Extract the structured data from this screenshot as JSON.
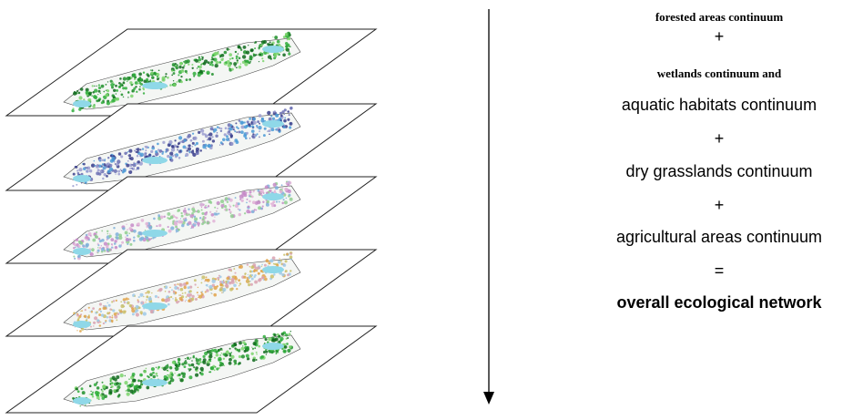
{
  "flow": {
    "line1": "forested areas continuum",
    "plus1": "+",
    "line2": "wetlands continuum and",
    "line3": "aquatic habitats continuum",
    "plus2": "+",
    "line4": "dry grasslands continuum",
    "plus3": "+",
    "line5": "agricultural areas continuum",
    "equals": "=",
    "result": "overall ecological network"
  },
  "layers": [
    {
      "name": "forested-areas-layer",
      "palette": [
        "#1e8f2a",
        "#2fae3b",
        "#7ad36b",
        "#0f6a1c"
      ]
    },
    {
      "name": "wetlands-aquatic-layer",
      "palette": [
        "#3b3f8c",
        "#6a6fb3",
        "#9a9ccf",
        "#4a9ad6"
      ]
    },
    {
      "name": "dry-grasslands-layer",
      "palette": [
        "#c58bc8",
        "#7fb0d9",
        "#e1b1d6",
        "#8fcf8f"
      ]
    },
    {
      "name": "agricultural-areas-layer",
      "palette": [
        "#e0a34a",
        "#c9c06a",
        "#9ec9e6",
        "#d9a2b0"
      ]
    },
    {
      "name": "overall-network-layer",
      "palette": [
        "#1e8f2a",
        "#2fae3b",
        "#7ad36b",
        "#0f6a1c"
      ]
    }
  ]
}
